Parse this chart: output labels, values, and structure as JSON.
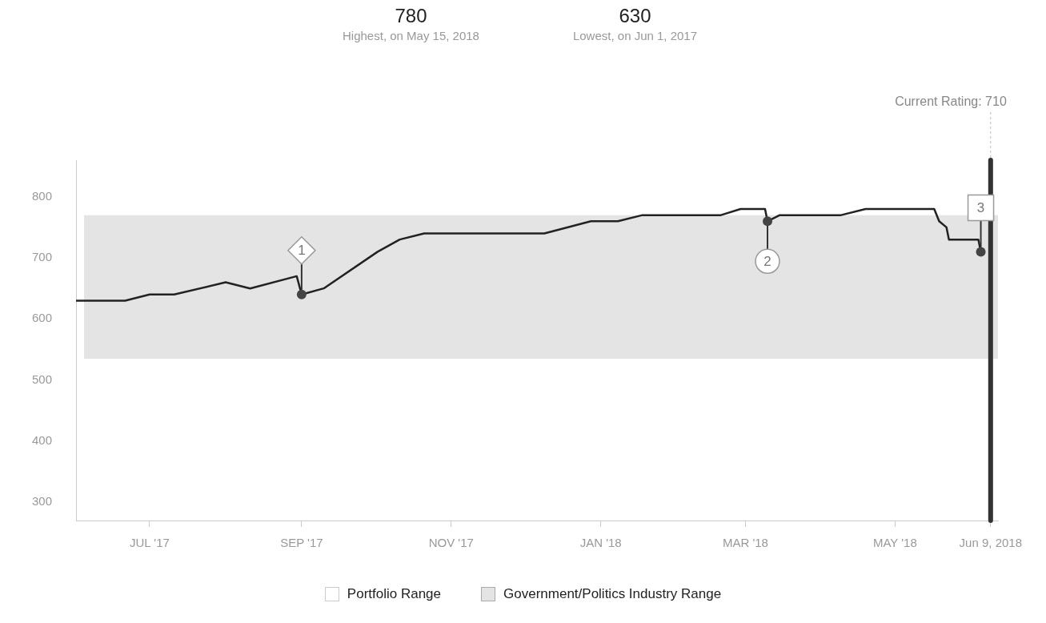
{
  "chart_data": {
    "type": "line",
    "x": [
      "2017-06-01",
      "2017-06-21",
      "2017-07-01",
      "2017-07-11",
      "2017-08-01",
      "2017-08-11",
      "2017-08-30",
      "2017-09-01",
      "2017-09-10",
      "2017-10-02",
      "2017-10-11",
      "2017-10-21",
      "2017-12-09",
      "2017-12-28",
      "2018-01-08",
      "2018-01-18",
      "2018-02-19",
      "2018-02-27",
      "2018-03-09",
      "2018-03-10",
      "2018-03-15",
      "2018-04-09",
      "2018-04-19",
      "2018-05-17",
      "2018-05-19",
      "2018-05-22",
      "2018-05-23",
      "2018-06-04",
      "2018-06-05"
    ],
    "series": [
      {
        "color": "#222222",
        "values": [
          630,
          630,
          640,
          640,
          660,
          650,
          670,
          640,
          650,
          710,
          730,
          740,
          740,
          760,
          760,
          770,
          770,
          780,
          780,
          760,
          770,
          770,
          780,
          780,
          760,
          750,
          730,
          730,
          710
        ]
      }
    ],
    "xlim": [
      "2017-06-01",
      "2018-06-12"
    ],
    "xticks": [
      {
        "value": "2017-07-01",
        "label": "JUL '17"
      },
      {
        "value": "2017-09-01",
        "label": "SEP '17"
      },
      {
        "value": "2017-11-01",
        "label": "NOV '17"
      },
      {
        "value": "2018-01-01",
        "label": "JAN '18"
      },
      {
        "value": "2018-03-01",
        "label": "MAR '18"
      },
      {
        "value": "2018-05-01",
        "label": "MAY '18"
      },
      {
        "value": "2018-06-09",
        "label": "Jun 9, 2018"
      }
    ],
    "ylim": [
      270,
      860
    ],
    "yticks": [
      300,
      400,
      500,
      600,
      700,
      800
    ],
    "grid": false,
    "marker": "none",
    "line_style": "solid",
    "legend": "bottom",
    "bands": [
      {
        "axis": "y",
        "from": 535,
        "to": 770,
        "label": "Government/Politics Industry Range",
        "color": "#e4e4e4"
      }
    ],
    "ref_lines": [
      {
        "axis": "x",
        "value": "2018-06-09",
        "label": "Current Rating: 710",
        "color": "#333333"
      }
    ],
    "annotations": [
      "780",
      "Highest, on May 15, 2018",
      "630",
      "Lowest, on Jun 1, 2017",
      "Portfolio Range",
      {
        "text": "1",
        "x": "2017-09-01",
        "y": 640
      },
      {
        "text": "2",
        "x": "2018-03-10",
        "y": 760
      },
      {
        "text": "3",
        "x": "2018-06-05",
        "y": 710
      }
    ]
  }
}
